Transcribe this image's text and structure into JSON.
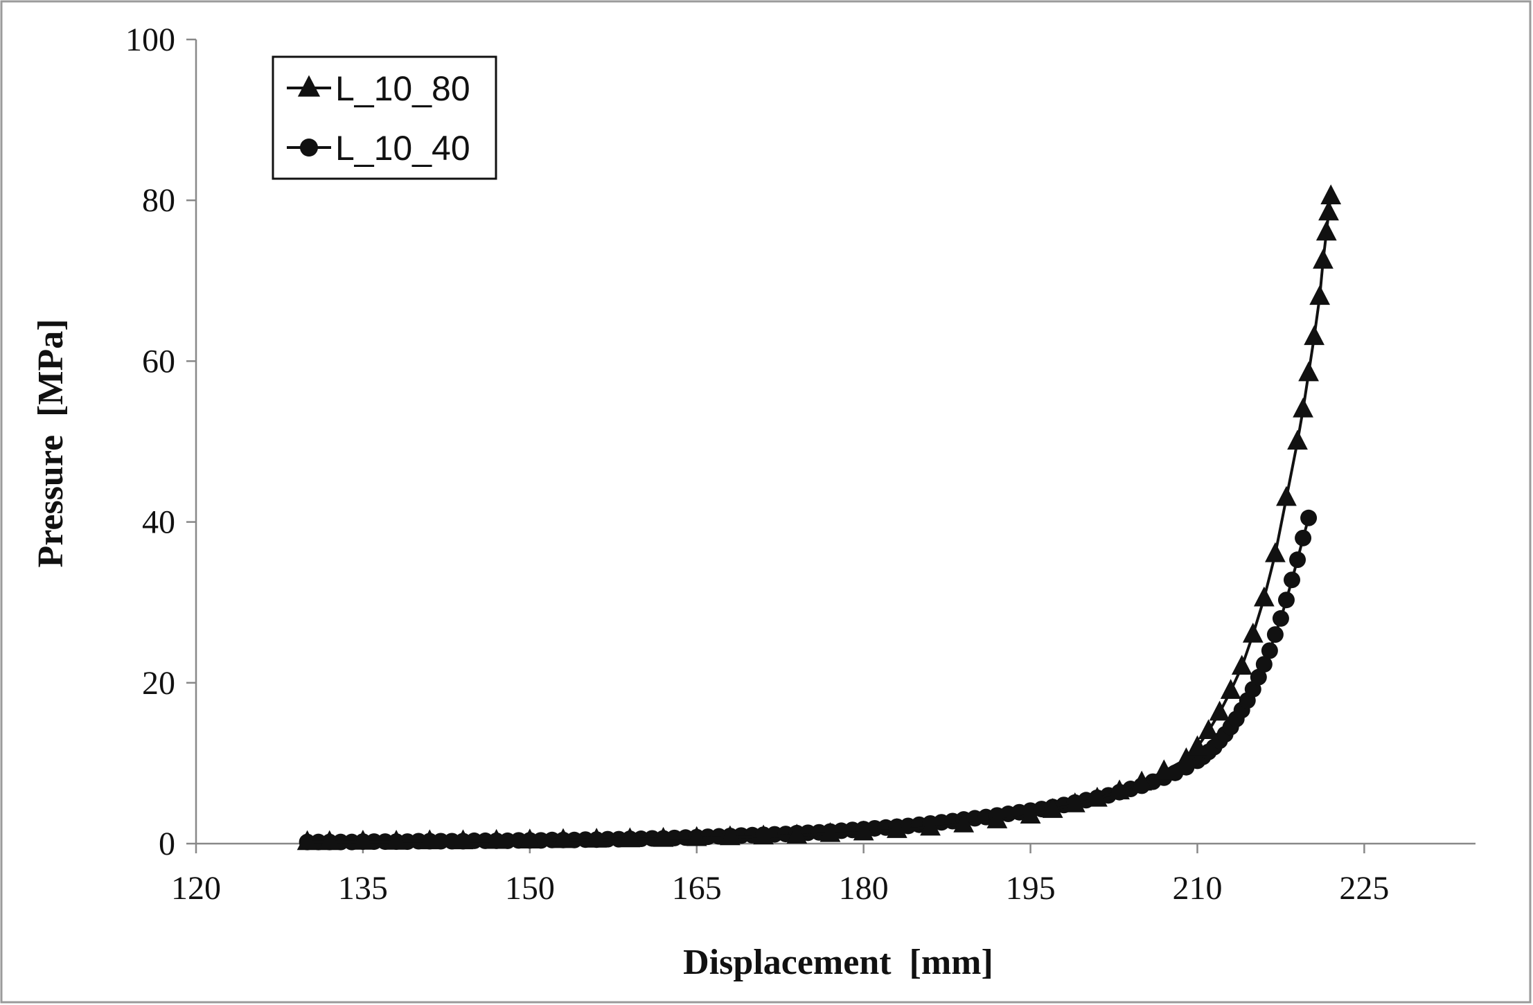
{
  "chart_data": {
    "type": "line",
    "title": "",
    "xlabel": "Displacement  [mm]",
    "ylabel": "Pressure  [MPa]",
    "xlim": [
      120,
      235
    ],
    "ylim": [
      0,
      100
    ],
    "xticks": [
      120,
      135,
      150,
      165,
      180,
      195,
      210,
      225
    ],
    "yticks": [
      0,
      20,
      40,
      60,
      80,
      100
    ],
    "grid": false,
    "legend_position": "top-left",
    "series": [
      {
        "name": "L_10_80",
        "marker": "triangle",
        "color": "#111111",
        "x": [
          130,
          132,
          135,
          138,
          141,
          144,
          147,
          150,
          153,
          156,
          159,
          162,
          165,
          168,
          171,
          174,
          177,
          180,
          183,
          186,
          189,
          192,
          195,
          197,
          199,
          201,
          203,
          205,
          207,
          209,
          210,
          211,
          212,
          213,
          214,
          215,
          216,
          217,
          218,
          219,
          219.5,
          220,
          220.5,
          221,
          221.3,
          221.6,
          221.8,
          222
        ],
        "y": [
          0.2,
          0.2,
          0.25,
          0.25,
          0.3,
          0.3,
          0.35,
          0.4,
          0.45,
          0.5,
          0.55,
          0.6,
          0.7,
          0.8,
          0.9,
          1.0,
          1.2,
          1.4,
          1.7,
          2.0,
          2.4,
          2.9,
          3.5,
          4.2,
          4.9,
          5.6,
          6.5,
          7.6,
          9.0,
          10.5,
          12.0,
          14.0,
          16.3,
          19.0,
          22.0,
          26.0,
          30.5,
          36.0,
          43.0,
          50.0,
          54.0,
          58.5,
          63.0,
          68.0,
          72.5,
          76.0,
          78.5,
          80.5
        ]
      },
      {
        "name": "L_10_40",
        "marker": "circle",
        "color": "#111111",
        "x": [
          130,
          131,
          132,
          133,
          134,
          135,
          136,
          137,
          138,
          139,
          140,
          141,
          142,
          143,
          144,
          145,
          146,
          147,
          148,
          149,
          150,
          151,
          152,
          153,
          154,
          155,
          156,
          157,
          158,
          159,
          160,
          161,
          162,
          163,
          164,
          165,
          166,
          167,
          168,
          169,
          170,
          171,
          172,
          173,
          174,
          175,
          176,
          177,
          178,
          179,
          180,
          181,
          182,
          183,
          184,
          185,
          186,
          187,
          188,
          189,
          190,
          191,
          192,
          193,
          194,
          195,
          196,
          197,
          198,
          199,
          200,
          201,
          202,
          203,
          204,
          205,
          206,
          207,
          208,
          209,
          210,
          210.5,
          211,
          211.5,
          212,
          212.5,
          213,
          213.5,
          214,
          214.5,
          215,
          215.5,
          216,
          216.5,
          217,
          217.5,
          218,
          218.5,
          219,
          219.5,
          220
        ],
        "y": [
          0.2,
          0.2,
          0.2,
          0.2,
          0.2,
          0.25,
          0.25,
          0.25,
          0.25,
          0.25,
          0.3,
          0.3,
          0.3,
          0.3,
          0.3,
          0.35,
          0.35,
          0.35,
          0.35,
          0.4,
          0.4,
          0.4,
          0.45,
          0.45,
          0.45,
          0.5,
          0.5,
          0.55,
          0.55,
          0.6,
          0.6,
          0.65,
          0.65,
          0.7,
          0.75,
          0.8,
          0.85,
          0.9,
          0.95,
          1.0,
          1.05,
          1.1,
          1.15,
          1.2,
          1.3,
          1.35,
          1.4,
          1.5,
          1.6,
          1.7,
          1.8,
          1.9,
          2.0,
          2.1,
          2.2,
          2.35,
          2.5,
          2.65,
          2.8,
          3.0,
          3.15,
          3.3,
          3.5,
          3.7,
          3.9,
          4.1,
          4.3,
          4.55,
          4.8,
          5.1,
          5.4,
          5.7,
          6.0,
          6.4,
          6.8,
          7.2,
          7.7,
          8.2,
          8.8,
          9.5,
          10.3,
          10.8,
          11.4,
          12.0,
          12.8,
          13.6,
          14.5,
          15.5,
          16.6,
          17.8,
          19.2,
          20.7,
          22.3,
          24.0,
          26.0,
          28.0,
          30.3,
          32.8,
          35.3,
          38.0,
          40.5
        ]
      }
    ]
  }
}
